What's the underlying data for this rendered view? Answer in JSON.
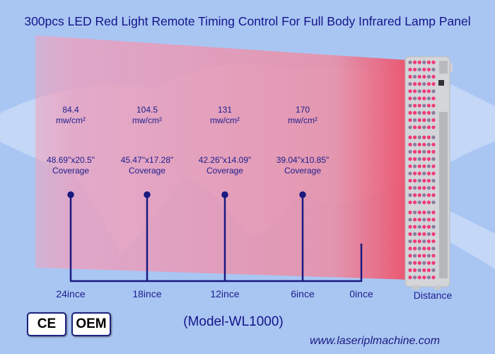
{
  "title": "300pcs LED Red Light Remote Timing Control For Full Body Infrared Lamp Panel",
  "columns": [
    {
      "irradiance": "84.4",
      "unit": "mw/cm²",
      "coverage": "48.69\"x20.5\"",
      "coverage_label": "Coverage",
      "distance": "24ince"
    },
    {
      "irradiance": "104.5",
      "unit": "mw/cm²",
      "coverage": "45.47\"x17.28\"",
      "coverage_label": "Coverage",
      "distance": "18ince"
    },
    {
      "irradiance": "131",
      "unit": "mw/cm²",
      "coverage": "42.26\"x14.09\"",
      "coverage_label": "Coverage",
      "distance": "12ince"
    },
    {
      "irradiance": "170",
      "unit": "mw/cm²",
      "coverage": "39.04\"x10.85\"",
      "coverage_label": "Coverage",
      "distance": "6ince"
    }
  ],
  "zero_distance": "0ince",
  "distance_label": "Distance",
  "model": "(Model-WL1000)",
  "badges": {
    "ce": "CE",
    "oem": "OEM"
  },
  "website": "www.laseriplmachine.com",
  "colors": {
    "line": "#1a1a80",
    "beam": "#f0506a",
    "background": "#a9c6f3"
  }
}
